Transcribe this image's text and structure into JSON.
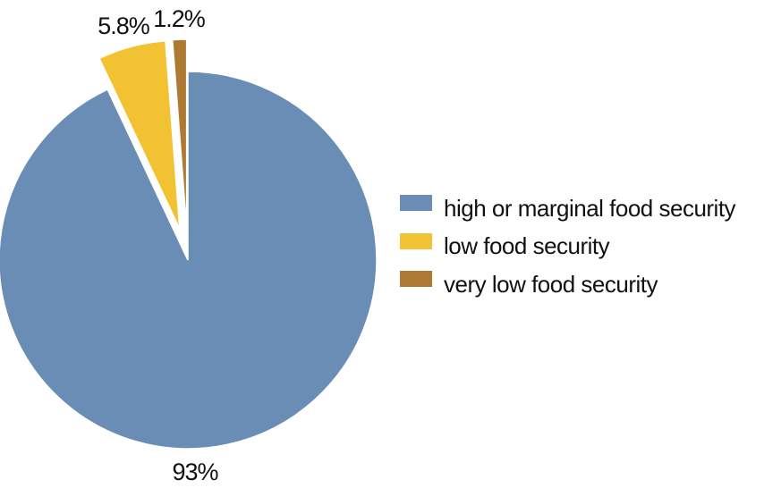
{
  "chart_data": {
    "type": "pie",
    "title": "",
    "slices": [
      {
        "label": "high or marginal food security",
        "value": 93,
        "display": "93%",
        "color": "#6a8db5",
        "exploded": false
      },
      {
        "label": "low food security",
        "value": 5.8,
        "display": "5.8%",
        "color": "#f3c232",
        "exploded": true
      },
      {
        "label": "very low food security",
        "value": 1.2,
        "display": "1.2%",
        "color": "#ae7a33",
        "exploded": true
      }
    ],
    "legend": {
      "placement": "right"
    }
  }
}
